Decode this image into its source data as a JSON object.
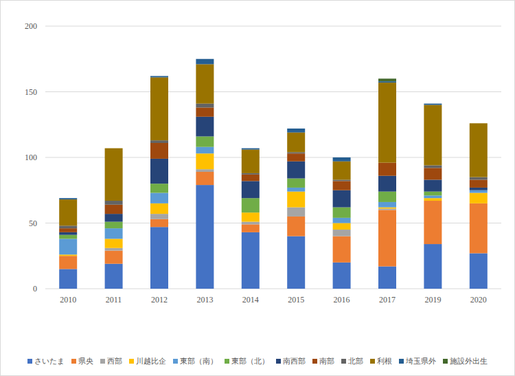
{
  "chart_data": {
    "type": "bar",
    "stacked": true,
    "grid": true,
    "legend": "bottom",
    "categories": [
      "2010",
      "2011",
      "2012",
      "2013",
      "2014",
      "2015",
      "2016",
      "2017",
      "2019",
      "2020"
    ],
    "ylim": [
      0,
      200
    ],
    "yticks": [
      0,
      50,
      100,
      150,
      200
    ],
    "series": [
      {
        "name": "さいたま",
        "color": "#4472c4",
        "values": [
          15,
          19,
          47,
          79,
          43,
          40,
          20,
          17,
          34,
          27
        ]
      },
      {
        "name": "県央",
        "color": "#ed7d31",
        "values": [
          10,
          10,
          6,
          10,
          6,
          15,
          20,
          43,
          33,
          38
        ]
      },
      {
        "name": "西部",
        "color": "#a5a5a5",
        "values": [
          0,
          2,
          4,
          2,
          2,
          7,
          5,
          1,
          0,
          0
        ]
      },
      {
        "name": "川越比企",
        "color": "#ffc000",
        "values": [
          1,
          7,
          8,
          12,
          7,
          12,
          5,
          1,
          2,
          8
        ]
      },
      {
        "name": "東部（南）",
        "color": "#5b9bd5",
        "values": [
          12,
          8,
          8,
          5,
          0,
          3,
          4,
          4,
          2,
          2
        ]
      },
      {
        "name": "東部（北）",
        "color": "#70ad47",
        "values": [
          3,
          5,
          7,
          8,
          11,
          7,
          8,
          8,
          3,
          0
        ]
      },
      {
        "name": "南西部",
        "color": "#264478",
        "values": [
          2,
          6,
          19,
          15,
          13,
          13,
          13,
          12,
          9,
          2
        ]
      },
      {
        "name": "南部",
        "color": "#9e480e",
        "values": [
          3,
          7,
          12,
          7,
          5,
          6,
          7,
          10,
          9,
          6
        ]
      },
      {
        "name": "北部",
        "color": "#636363",
        "values": [
          2,
          3,
          2,
          3,
          1,
          1,
          1,
          0,
          2,
          2
        ]
      },
      {
        "name": "利根",
        "color": "#997300",
        "values": [
          20,
          40,
          48,
          30,
          18,
          15,
          14,
          61,
          46,
          41
        ]
      },
      {
        "name": "埼玉県外",
        "color": "#255e91",
        "values": [
          1,
          0,
          1,
          4,
          1,
          3,
          3,
          1,
          1,
          0
        ]
      },
      {
        "name": "施設外出生",
        "color": "#43682b",
        "values": [
          0,
          0,
          0,
          0,
          0,
          0,
          0,
          2,
          0,
          0
        ]
      }
    ]
  }
}
